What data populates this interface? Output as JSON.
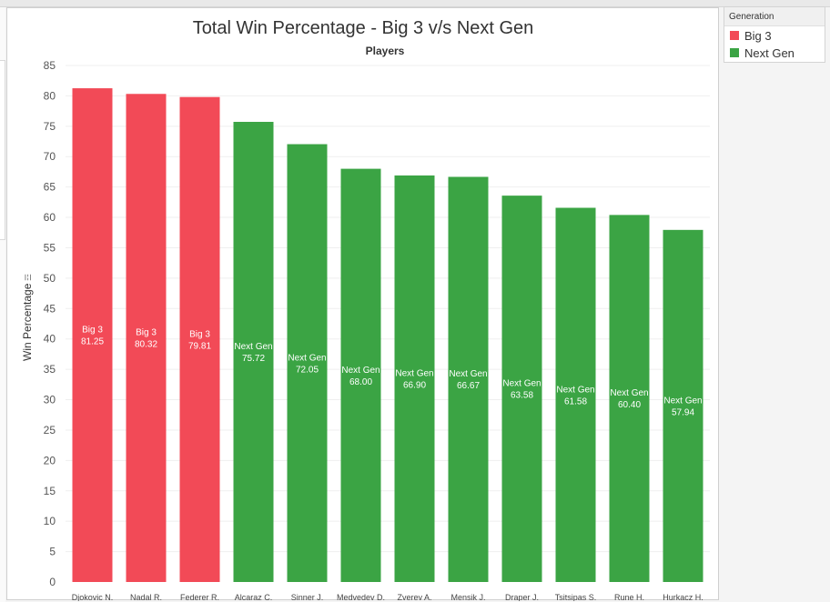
{
  "chart_data": {
    "type": "bar",
    "title": "Total Win Percentage - Big 3 v/s Next Gen",
    "subtitle": "Players",
    "ylabel": "Win Percentage",
    "ylabel_suffix": "☲",
    "ylim": [
      0,
      85
    ],
    "yticks": [
      0,
      5,
      10,
      15,
      20,
      25,
      30,
      35,
      40,
      45,
      50,
      55,
      60,
      65,
      70,
      75,
      80,
      85
    ],
    "grid": true,
    "legend_placement": "right",
    "categories": [
      "Djokovic N.",
      "Nadal R.",
      "Federer R.",
      "Alcaraz C.",
      "Sinner J.",
      "Medvedev D.",
      "Zverev A.",
      "Mensik J.",
      "Draper J.",
      "Tsitsipas S.",
      "Rune H.",
      "Hurkacz H."
    ],
    "values": [
      81.25,
      80.32,
      79.81,
      75.72,
      72.05,
      68.0,
      66.9,
      66.67,
      63.58,
      61.58,
      60.4,
      57.94
    ],
    "value_labels": [
      "81.25",
      "80.32",
      "79.81",
      "75.72",
      "72.05",
      "68.00",
      "66.90",
      "66.67",
      "63.58",
      "61.58",
      "60.40",
      "57.94"
    ],
    "groups": [
      "Big 3",
      "Big 3",
      "Big 3",
      "Next Gen",
      "Next Gen",
      "Next Gen",
      "Next Gen",
      "Next Gen",
      "Next Gen",
      "Next Gen",
      "Next Gen",
      "Next Gen"
    ],
    "series": [
      {
        "name": "Big 3",
        "color": "#f24a57"
      },
      {
        "name": "Next Gen",
        "color": "#3ba444"
      }
    ]
  },
  "legend": {
    "title": "Generation",
    "items": [
      {
        "label": "Big 3",
        "color": "#f24a57"
      },
      {
        "label": "Next Gen",
        "color": "#3ba444"
      }
    ]
  }
}
